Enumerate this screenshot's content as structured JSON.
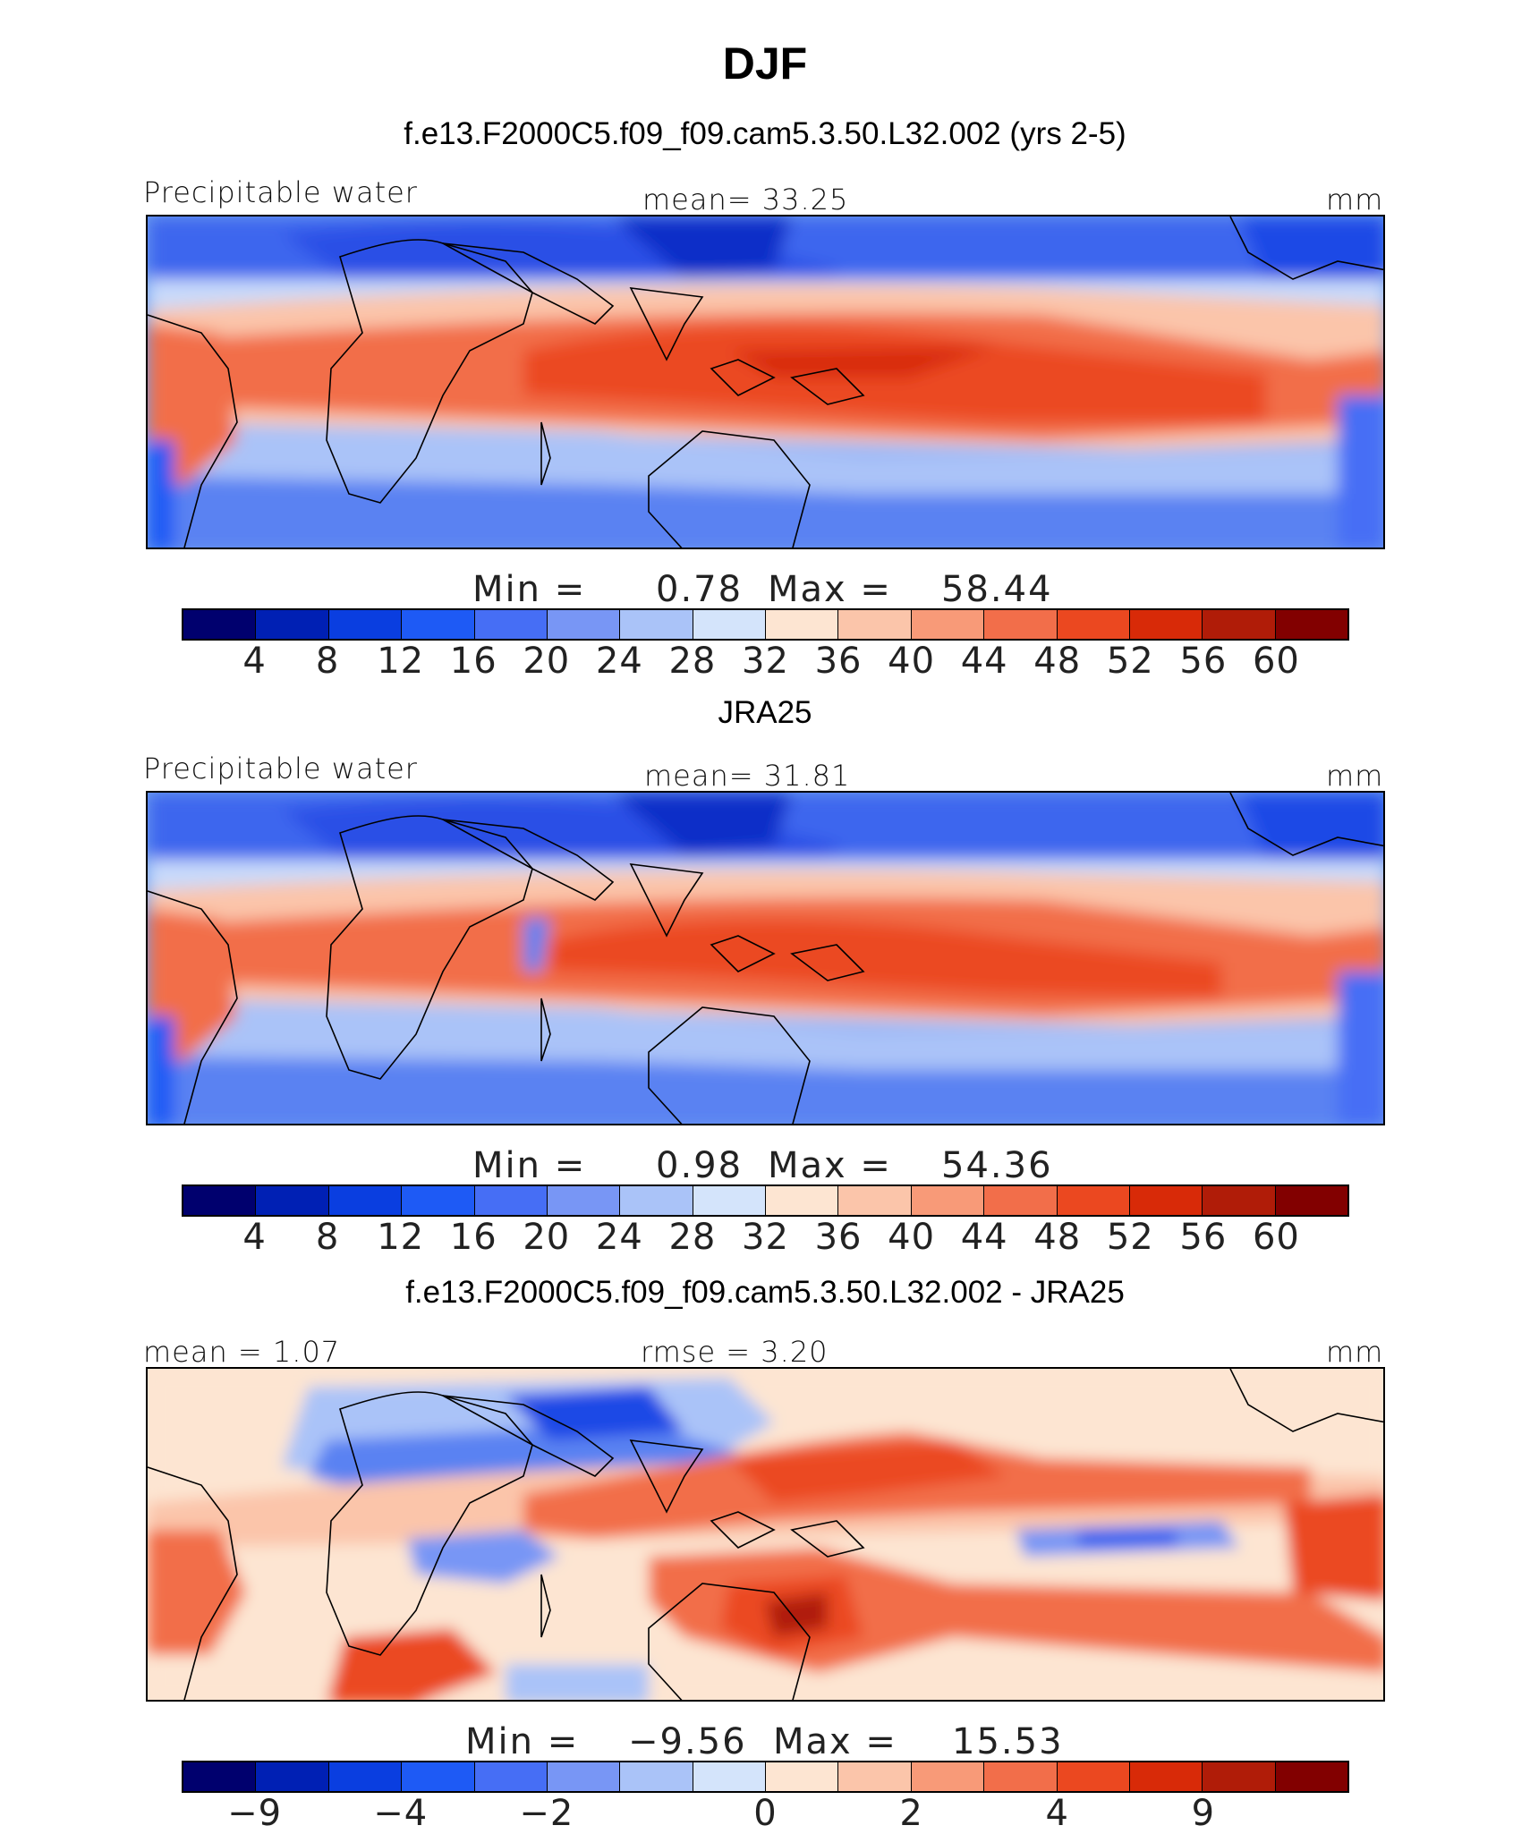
{
  "figure": {
    "title": "DJF"
  },
  "panels": [
    {
      "title": "f.e13.F2000C5.f09_f09.cam5.3.50.L32.002 (yrs 2-5)",
      "left_label": "Precipitable water",
      "center_label": "mean=   33.25",
      "units": "mm",
      "min_label": "Min  =",
      "min_value": "0.78",
      "max_label": "Max  =",
      "max_value": "58.44",
      "colorbar_ticks": [
        "4",
        "8",
        "12",
        "16",
        "20",
        "24",
        "28",
        "32",
        "36",
        "40",
        "44",
        "48",
        "52",
        "56",
        "60"
      ]
    },
    {
      "title": "JRA25",
      "left_label": "Precipitable water",
      "center_label": "mean=   31.81",
      "units": "mm",
      "min_label": "Min  =",
      "min_value": "0.98",
      "max_label": "Max  =",
      "max_value": "54.36",
      "colorbar_ticks": [
        "4",
        "8",
        "12",
        "16",
        "20",
        "24",
        "28",
        "32",
        "36",
        "40",
        "44",
        "48",
        "52",
        "56",
        "60"
      ]
    },
    {
      "title": "f.e13.F2000C5.f09_f09.cam5.3.50.L32.002 - JRA25",
      "left_label": "mean =    1.07",
      "center_label": "rmse =    3.20",
      "units": "mm",
      "min_label": "Min  =",
      "min_value": "−9.56",
      "max_label": "Max  =",
      "max_value": "15.53",
      "colorbar_ticks": [
        "−9",
        "−4",
        "−2",
        "0",
        "2",
        "4",
        "9"
      ]
    }
  ],
  "colorbar_colors": [
    "#00006e",
    "#0020b4",
    "#0a3ee0",
    "#1e5af5",
    "#466ef5",
    "#7896f5",
    "#aac3f8",
    "#d4e4fb",
    "#fde5d2",
    "#fbc5aa",
    "#f89a78",
    "#f26e4a",
    "#eb4820",
    "#d82a08",
    "#b01c08",
    "#820000"
  ]
}
